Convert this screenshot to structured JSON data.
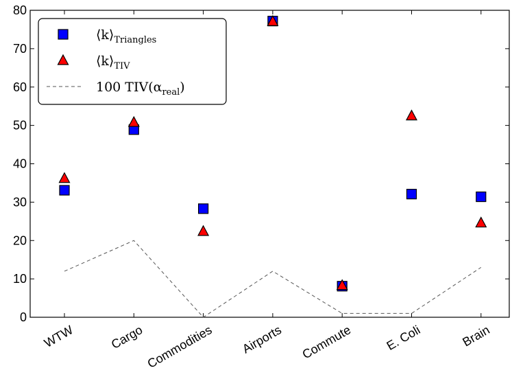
{
  "chart_data": {
    "type": "scatter",
    "title": "",
    "xlabel": "",
    "ylabel": "",
    "categories": [
      "WTW",
      "Cargo",
      "Commodities",
      "Airports",
      "Commute",
      "E. Coli",
      "Brain"
    ],
    "ylim": [
      0,
      80
    ],
    "yticks": [
      0,
      10,
      20,
      30,
      40,
      50,
      60,
      70,
      80
    ],
    "grid": false,
    "legend_position": "top-left",
    "series": [
      {
        "name": "⟨k⟩Triangles",
        "label_main": "⟨k⟩",
        "label_sub": "Triangles",
        "marker": "square",
        "color": "#0000ff",
        "values": [
          33.1,
          48.9,
          28.3,
          77.2,
          8.1,
          32.1,
          31.4
        ]
      },
      {
        "name": "⟨k⟩TIV",
        "label_main": "⟨k⟩",
        "label_sub": "TIV",
        "marker": "triangle",
        "color": "#ff0000",
        "values": [
          36.2,
          50.8,
          22.4,
          77.1,
          8.3,
          52.5,
          24.6
        ]
      },
      {
        "name": "100 TIV(αreal)",
        "label_main": "100    TIV(α",
        "label_sub": "real",
        "label_end": ")",
        "marker": "dashed-line",
        "color": "#555555",
        "values": [
          12,
          20,
          0,
          12,
          1,
          1,
          13
        ]
      }
    ]
  }
}
